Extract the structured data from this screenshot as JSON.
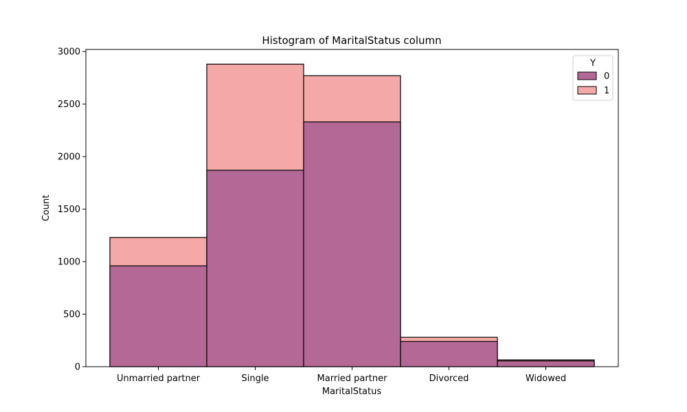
{
  "chart_data": {
    "type": "bar",
    "stacking": "overlay",
    "title": "Histogram of MaritalStatus column",
    "xlabel": "MaritalStatus",
    "ylabel": "Count",
    "categories": [
      "Unmarried partner",
      "Single",
      "Married partner",
      "Divorced",
      "Widowed"
    ],
    "ylim": [
      0,
      3020
    ],
    "yticks": [
      0,
      500,
      1000,
      1500,
      2000,
      2500,
      3000
    ],
    "grid": false,
    "legend": {
      "title": "Y",
      "position": "top-right"
    },
    "series": [
      {
        "name": "1",
        "values": [
          1230,
          2880,
          2770,
          280,
          65
        ],
        "color": "#f4a9a8"
      },
      {
        "name": "0",
        "values": [
          960,
          1870,
          2330,
          240,
          55
        ],
        "color": "#b36896"
      }
    ],
    "edge_color": "#000000"
  }
}
